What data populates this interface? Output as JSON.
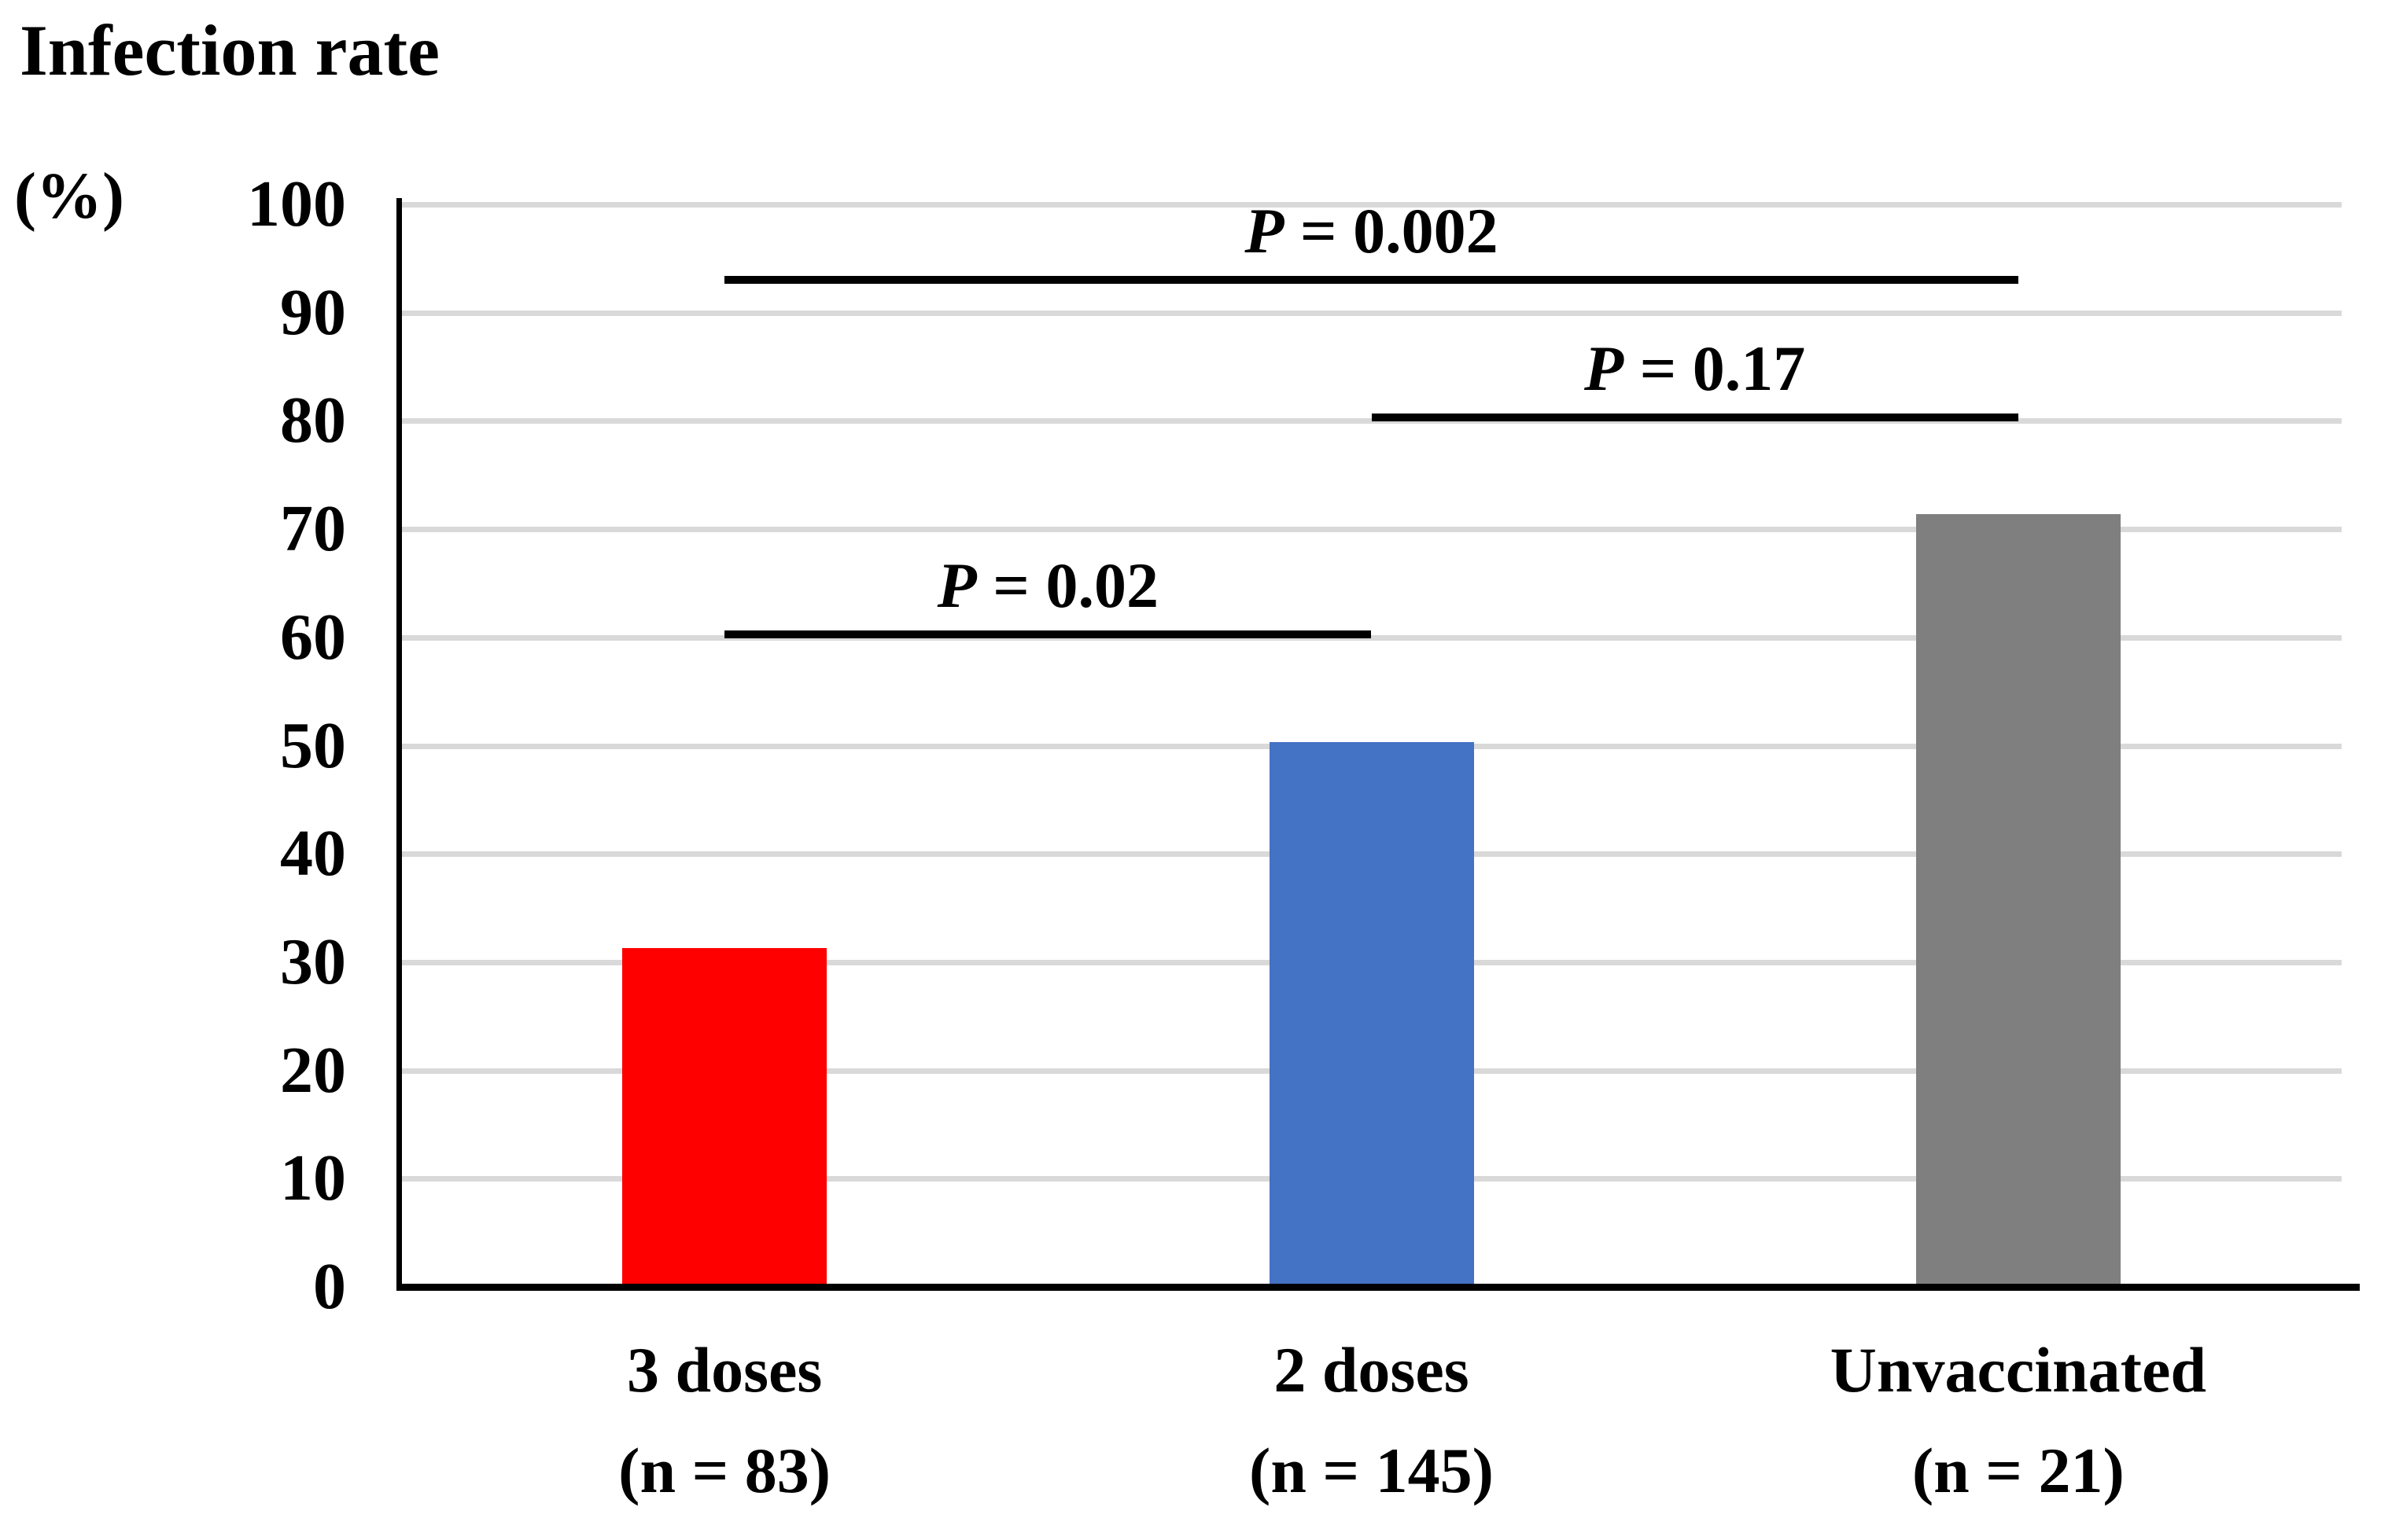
{
  "title": "Infection rate",
  "y_axis_unit": "(%)",
  "colors": {
    "bar_3_doses": "#fe0000",
    "bar_2_doses": "#4472c4",
    "bar_unvaccinated": "#7f7f7f",
    "gridline": "#d9d9d9",
    "axis": "#000000",
    "text": "#000000"
  },
  "chart_data": {
    "type": "bar",
    "title": "Infection rate (%)",
    "xlabel": "",
    "ylabel": "Infection rate (%)",
    "ylim": [
      0,
      100
    ],
    "grid": true,
    "legend": false,
    "yticks": [
      0,
      10,
      20,
      30,
      40,
      50,
      60,
      70,
      80,
      90,
      100
    ],
    "ytick_labels": [
      "0",
      "10",
      "20",
      "30",
      "40",
      "50",
      "60",
      "70",
      "80",
      "90",
      "100"
    ],
    "categories": [
      {
        "line1": "3 doses",
        "line2": "(n = 83)"
      },
      {
        "line1": "2 doses",
        "line2": "(n = 145)"
      },
      {
        "line1": "Unvaccinated",
        "line2": "(n = 21)"
      }
    ],
    "values": [
      31.3,
      50.3,
      71.4
    ],
    "bar_colors": [
      "#fe0000",
      "#4472c4",
      "#7f7f7f"
    ],
    "significance": [
      {
        "label": "P = 0.002",
        "from": 0,
        "to": 2,
        "y": 93.0
      },
      {
        "label": "P = 0.17",
        "from": 1,
        "to": 2,
        "y": 80.3
      },
      {
        "label": "P = 0.02",
        "from": 0,
        "to": 1,
        "y": 60.3
      }
    ]
  }
}
